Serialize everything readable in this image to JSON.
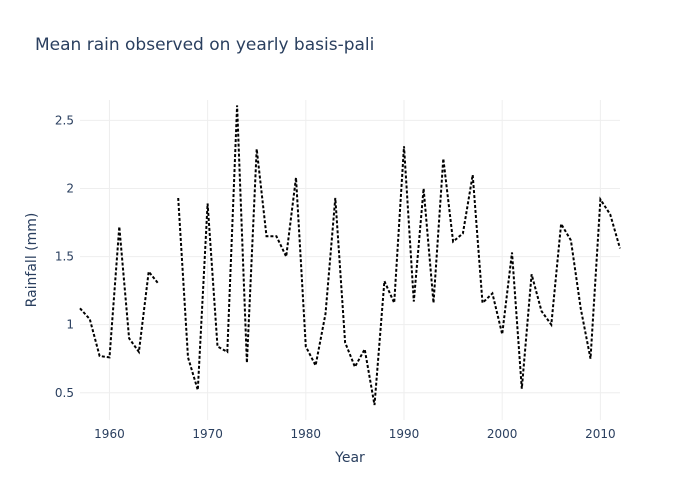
{
  "chart_data": {
    "type": "line",
    "title": "Mean rain observed on yearly basis-pali",
    "xlabel": "Year",
    "ylabel": "Rainfall (mm)",
    "xlim": [
      1957,
      2012
    ],
    "ylim": [
      0.3,
      2.65
    ],
    "x_ticks": [
      1960,
      1970,
      1980,
      1990,
      2000,
      2010
    ],
    "y_ticks": [
      0.5,
      1,
      1.5,
      2,
      2.5
    ],
    "y_tick_labels": [
      "0.5",
      "1",
      "1.5",
      "2",
      "2.5"
    ],
    "grid": true,
    "line_color": "#000000",
    "line_style": "dotted",
    "series": [
      {
        "x": [
          1957,
          1958,
          1959,
          1960,
          1961,
          1962,
          1963,
          1964,
          1965,
          1966,
          1967,
          1968,
          1969,
          1970,
          1971,
          1972,
          1973,
          1974,
          1975,
          1976,
          1977,
          1978,
          1979,
          1980,
          1981,
          1982,
          1983,
          1984,
          1985,
          1986,
          1987,
          1988,
          1989,
          1990,
          1991,
          1992,
          1993,
          1994,
          1995,
          1996,
          1997,
          1998,
          1999,
          2000,
          2001,
          2002,
          2003,
          2004,
          2005,
          2006,
          2007,
          2008,
          2009,
          2010,
          2011,
          2012
        ],
        "y": [
          1.12,
          1.04,
          0.77,
          0.76,
          1.72,
          0.9,
          0.8,
          1.39,
          1.3,
          null,
          1.93,
          0.76,
          0.52,
          1.89,
          0.84,
          0.8,
          2.61,
          0.72,
          2.29,
          1.65,
          1.65,
          1.5,
          2.08,
          0.84,
          0.7,
          1.08,
          1.93,
          0.87,
          0.69,
          0.82,
          0.41,
          1.32,
          1.16,
          2.31,
          1.17,
          2.0,
          1.16,
          2.22,
          1.61,
          1.67,
          2.1,
          1.16,
          1.23,
          0.93,
          1.53,
          0.53,
          1.37,
          1.1,
          1.0,
          1.74,
          1.62,
          1.12,
          0.75,
          1.92,
          1.81,
          1.56
        ]
      }
    ]
  }
}
